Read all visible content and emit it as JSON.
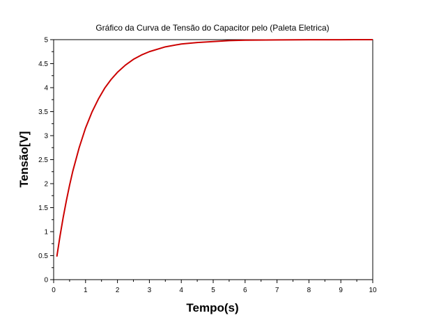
{
  "chart_data": {
    "type": "line",
    "title": "Gráfico da Curva de Tensão do Capacitor pelo (Paleta Eletrica)",
    "xlabel": "Tempo(s)",
    "ylabel": "Tensão[V]",
    "xlim": [
      0,
      10
    ],
    "ylim": [
      0,
      5
    ],
    "xticks": [
      0,
      1,
      2,
      3,
      4,
      5,
      6,
      7,
      8,
      9,
      10
    ],
    "yticks": [
      0,
      0.5,
      1,
      1.5,
      2,
      2.5,
      3,
      3.5,
      4,
      4.5,
      5
    ],
    "grid": false,
    "series": [
      {
        "color": "#cc0000",
        "x": [
          0.1,
          0.2,
          0.3,
          0.4,
          0.5,
          0.6,
          0.8,
          1.0,
          1.2,
          1.4,
          1.6,
          1.8,
          2.0,
          2.25,
          2.5,
          2.75,
          3.0,
          3.5,
          4.0,
          4.5,
          5.0,
          5.5,
          6.0,
          7.0,
          8.0,
          9.0,
          10.0
        ],
        "y": [
          0.48,
          0.91,
          1.3,
          1.65,
          1.97,
          2.26,
          2.75,
          3.16,
          3.49,
          3.76,
          3.99,
          4.17,
          4.32,
          4.47,
          4.59,
          4.68,
          4.75,
          4.85,
          4.91,
          4.94,
          4.96,
          4.98,
          4.99,
          4.995,
          4.998,
          4.999,
          5.0
        ]
      }
    ]
  }
}
